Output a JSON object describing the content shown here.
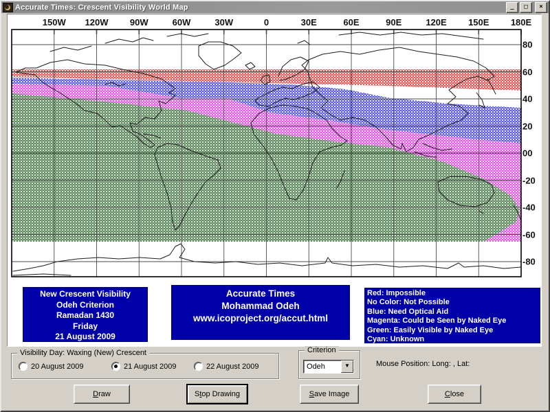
{
  "window": {
    "title": "Accurate Times: Crescent Visibility World Map"
  },
  "titlebar_buttons": {
    "minimize": "_",
    "maximize": "□",
    "close": "×"
  },
  "map": {
    "lon_labels": [
      "150W",
      "120W",
      "90W",
      "60W",
      "30W",
      "0",
      "30E",
      "60E",
      "90E",
      "120E",
      "150E",
      "180E"
    ],
    "lat_labels": [
      "80",
      "60",
      "40",
      "20",
      "00",
      "-20",
      "-40",
      "-60",
      "-80"
    ],
    "zone_colors": {
      "red": "#c40000",
      "blue": "#0000c4",
      "magenta": "#cc00cc",
      "green": "#007700"
    },
    "grid_color": "#4a4a4a",
    "outline_color": "#1c1c1c"
  },
  "info_left": {
    "lines": [
      "New Crescent Visibility",
      "Odeh Criterion",
      "Ramadan 1430",
      "Friday",
      "21 August 2009"
    ]
  },
  "info_center": {
    "lines": [
      "Accurate Times",
      "Mohammad Odeh",
      "www.icoproject.org/accut.html"
    ]
  },
  "legend": {
    "lines": [
      "Red: Impossible",
      "No Color: Not Possible",
      "Blue: Need Optical Aid",
      "Magenta: Could be Seen by Naked Eye",
      "Green: Easily Visible by Naked Eye",
      "Cyan: Unknown"
    ]
  },
  "controls": {
    "visibility_group_label": "Visibility Day: Waxing (New) Crescent",
    "radios": [
      {
        "label": "20 August 2009",
        "selected": false
      },
      {
        "label": "21 August 2009",
        "selected": true
      },
      {
        "label": "22 August 2009",
        "selected": false
      }
    ],
    "criterion_group_label": "Criterion",
    "criterion_value": "Odeh",
    "dropdown_arrow": "▼",
    "mouse_position": "Mouse Position: Long: , Lat:"
  },
  "buttons": {
    "draw": {
      "pre": "",
      "key": "D",
      "rest": "raw"
    },
    "stop": {
      "pre": "S",
      "key": "t",
      "rest": "op Drawing"
    },
    "save": {
      "pre": "",
      "key": "S",
      "rest": "ave Image"
    },
    "close": {
      "pre": "",
      "key": "C",
      "rest": "lose"
    }
  }
}
